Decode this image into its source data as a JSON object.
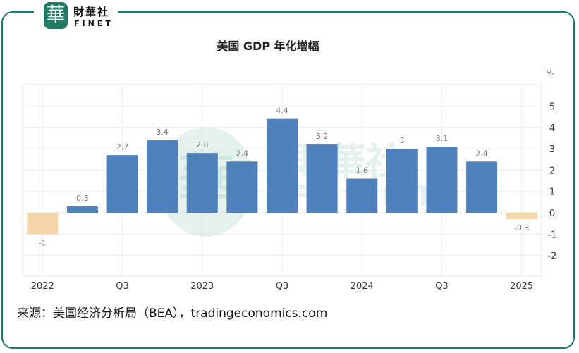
{
  "brand": {
    "seal_char": "華",
    "name_cn": "財華社",
    "name_en": "FINET",
    "color": "#1f7a66"
  },
  "chart_title": "美国 GDP 年化增幅",
  "source_text": "来源：美国经济分析局（BEA），tradingeconomics.com",
  "chart_data": {
    "type": "bar",
    "title": "美国 GDP 年化增幅",
    "unit": "%",
    "ylim": [
      -2,
      5
    ],
    "yticks": [
      "5",
      "4",
      "3",
      "2",
      "1",
      "0",
      "-1",
      "-2"
    ],
    "ytick_values": [
      5,
      4,
      3,
      2,
      1,
      0,
      -1,
      -2
    ],
    "x_tick_labels": [
      "2022",
      "Q3",
      "2023",
      "Q3",
      "2024",
      "Q3",
      "2025"
    ],
    "x_tick_at_bar": [
      0,
      2,
      4,
      6,
      8,
      10,
      12
    ],
    "values": [
      -1,
      0.3,
      2.7,
      3.4,
      2.8,
      2.4,
      4.4,
      3.2,
      1.6,
      3,
      3.1,
      2.4,
      -0.3
    ],
    "value_labels": [
      "-1",
      "0.3",
      "2.7",
      "3.4",
      "2.8",
      "2.4",
      "4.4",
      "3.2",
      "1.6",
      "3",
      "3.1",
      "2.4",
      "-0.3"
    ],
    "positive_color": "#4f81bd",
    "negative_color": "#f5d5a8",
    "grid": true
  }
}
